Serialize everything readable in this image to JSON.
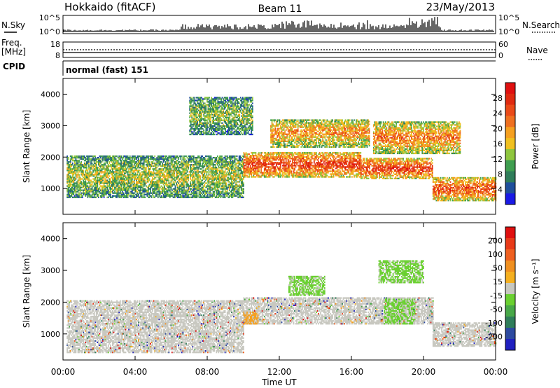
{
  "header": {
    "station": "Hokkaido (fitACF)",
    "beam": "Beam 11",
    "date": "23/May/2013"
  },
  "top_panels": {
    "nsky_label": "N.Sky",
    "nsearch_label": "N.Search",
    "noise_ticks": [
      "10^5",
      "10^0"
    ],
    "freq_label_1": "Freq.",
    "freq_label_2": "[MHz]",
    "freq_ticks": [
      "18",
      "8"
    ],
    "nave_label": "Nave",
    "nave_ticks": [
      "60",
      "0"
    ],
    "cpid_label": "CPID",
    "cpid_text": "normal (fast) 151"
  },
  "chart_data": [
    {
      "type": "heatmap",
      "quantity": "power",
      "ylabel": "Slant Range [km]",
      "xlabel": "",
      "yticks": [
        1000,
        2000,
        3000,
        4000
      ],
      "ylim": [
        180,
        4500
      ],
      "xlim": [
        0,
        24
      ],
      "colorbar": {
        "label": "Power [dB]",
        "ticks": [
          "4",
          "8",
          "12",
          "16",
          "20",
          "24",
          "28"
        ],
        "colors": [
          "#1a1ae6",
          "#1f4f9c",
          "#2f7d5a",
          "#3f9e50",
          "#8fc63e",
          "#f0c020",
          "#f5a020",
          "#ef7020",
          "#ea4a18",
          "#e02a10",
          "#e01010"
        ]
      },
      "bands": [
        {
          "t0": 0.2,
          "t1": 10.0,
          "r0": 700,
          "r1": 2050,
          "intensity": 0.45
        },
        {
          "t0": 10.0,
          "t1": 16.5,
          "r0": 1350,
          "r1": 2150,
          "intensity": 0.85
        },
        {
          "t0": 16.5,
          "t1": 20.5,
          "r0": 1300,
          "r1": 1950,
          "intensity": 0.85
        },
        {
          "t0": 20.5,
          "t1": 24.0,
          "r0": 600,
          "r1": 1350,
          "intensity": 0.8
        },
        {
          "t0": 11.5,
          "t1": 17.0,
          "r0": 2300,
          "r1": 3200,
          "intensity": 0.65
        },
        {
          "t0": 17.2,
          "t1": 22.0,
          "r0": 2100,
          "r1": 3100,
          "intensity": 0.7
        },
        {
          "t0": 7.0,
          "t1": 10.5,
          "r0": 2700,
          "r1": 3900,
          "intensity": 0.4
        }
      ]
    },
    {
      "type": "heatmap",
      "quantity": "velocity",
      "ylabel": "Slant Range [km]",
      "xlabel": "Time UT",
      "xticks": [
        "00:00",
        "04:00",
        "08:00",
        "12:00",
        "16:00",
        "20:00",
        "00:00"
      ],
      "yticks": [
        1000,
        2000,
        3000,
        4000
      ],
      "ylim": [
        180,
        4500
      ],
      "xlim": [
        0,
        24
      ],
      "colorbar": {
        "label": "Velocity [m s⁻¹]",
        "ticks": [
          "200",
          "100",
          "50",
          "15",
          "-15",
          "-50",
          "-100",
          "-200"
        ],
        "colors": [
          "#2020c0",
          "#2d4aa0",
          "#2f7d5a",
          "#48a848",
          "#6ad030",
          "#c8c8c0",
          "#f5b020",
          "#f09020",
          "#ef6020",
          "#e83a18",
          "#e01010"
        ]
      },
      "bands": [
        {
          "t0": 0.2,
          "t1": 10.0,
          "r0": 400,
          "r1": 2050,
          "kind": "gray"
        },
        {
          "t0": 10.0,
          "t1": 20.5,
          "r0": 1300,
          "r1": 2150,
          "kind": "gray"
        },
        {
          "t0": 20.5,
          "t1": 24.0,
          "r0": 600,
          "r1": 1350,
          "kind": "gray"
        },
        {
          "t0": 12.5,
          "t1": 14.5,
          "r0": 2200,
          "r1": 2800,
          "kind": "green"
        },
        {
          "t0": 17.8,
          "t1": 19.5,
          "r0": 1300,
          "r1": 2100,
          "kind": "green"
        },
        {
          "t0": 17.5,
          "t1": 20.0,
          "r0": 2600,
          "r1": 3300,
          "kind": "green"
        },
        {
          "t0": 10.0,
          "t1": 10.8,
          "r0": 1300,
          "r1": 1700,
          "kind": "orange"
        }
      ]
    }
  ]
}
